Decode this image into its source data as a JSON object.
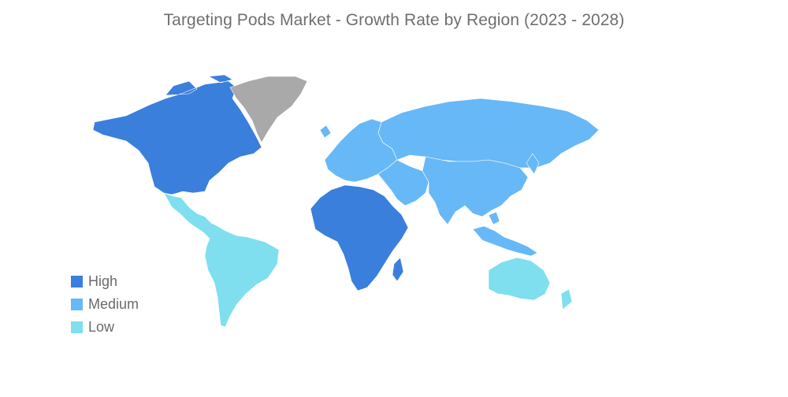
{
  "title": "Targeting Pods Market - Growth Rate by Region (2023 - 2028)",
  "legend": [
    {
      "label": "High",
      "color": "#3b7fdc"
    },
    {
      "label": "Medium",
      "color": "#67b8f6"
    },
    {
      "label": "Low",
      "color": "#7fdfee"
    }
  ],
  "no_data_color": "#a9a9a9",
  "regions": [
    {
      "name": "North America",
      "level": "High"
    },
    {
      "name": "Africa",
      "level": "High"
    },
    {
      "name": "Europe",
      "level": "Medium"
    },
    {
      "name": "Russia and Central Asia",
      "level": "Medium"
    },
    {
      "name": "Middle East",
      "level": "Medium"
    },
    {
      "name": "Asia",
      "level": "Medium"
    },
    {
      "name": "Southeast Asia",
      "level": "Medium"
    },
    {
      "name": "Latin America",
      "level": "Low"
    },
    {
      "name": "Oceania",
      "level": "Low"
    },
    {
      "name": "Greenland",
      "level": "none"
    }
  ]
}
